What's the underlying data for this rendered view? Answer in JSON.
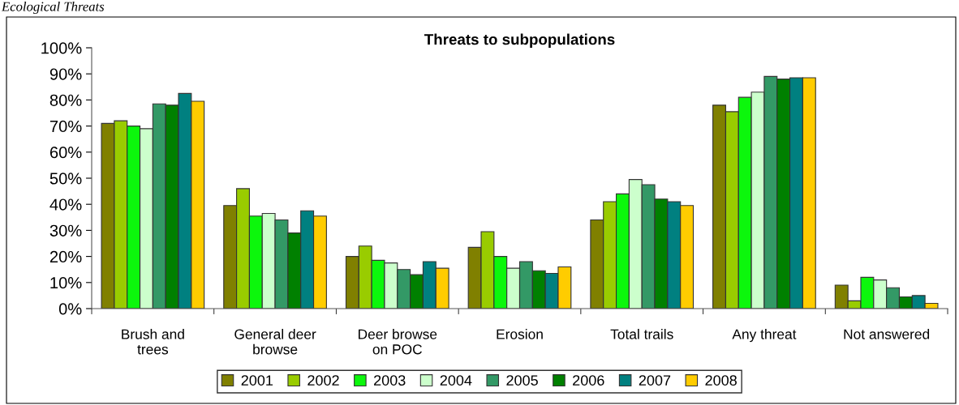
{
  "chart_data": {
    "type": "bar",
    "title": "Threats to subpopulations",
    "annotations": [
      "Ecological Threats"
    ],
    "categories": [
      "Brush and\ntrees",
      "General deer\nbrowse",
      "Deer browse\non POC",
      "Erosion",
      "Total trails",
      "Any threat",
      "Not answered"
    ],
    "series": [
      {
        "name": "2001",
        "color": "#808000",
        "values": [
          71,
          39.5,
          20,
          23.5,
          34,
          78,
          9
        ]
      },
      {
        "name": "2002",
        "color": "#99cc00",
        "values": [
          72,
          46,
          24,
          29.5,
          41,
          75.5,
          3
        ]
      },
      {
        "name": "2003",
        "color": "#0cf70c",
        "values": [
          70,
          35.5,
          18.5,
          20,
          44,
          81,
          12
        ]
      },
      {
        "name": "2004",
        "color": "#ccffcc",
        "values": [
          69,
          36.5,
          17.5,
          15.5,
          49.5,
          83,
          11
        ]
      },
      {
        "name": "2005",
        "color": "#339966",
        "values": [
          78.5,
          34,
          15,
          18,
          47.5,
          89,
          8
        ]
      },
      {
        "name": "2006",
        "color": "#008000",
        "values": [
          78,
          29,
          13,
          14.5,
          42,
          88,
          4.5
        ]
      },
      {
        "name": "2007",
        "color": "#008080",
        "values": [
          82.5,
          37.5,
          18,
          13.5,
          41,
          88.5,
          5
        ]
      },
      {
        "name": "2008",
        "color": "#ffcc00",
        "values": [
          79.5,
          35.5,
          15.5,
          16,
          39.5,
          88.5,
          2
        ]
      }
    ],
    "ylim": [
      0,
      100
    ],
    "yticks": [
      {
        "value": 0,
        "label": "0%"
      },
      {
        "value": 10,
        "label": "10%"
      },
      {
        "value": 20,
        "label": "20%"
      },
      {
        "value": 30,
        "label": "30%"
      },
      {
        "value": 40,
        "label": "40%"
      },
      {
        "value": 50,
        "label": "50%"
      },
      {
        "value": 60,
        "label": "60%"
      },
      {
        "value": 70,
        "label": "70%"
      },
      {
        "value": 80,
        "label": "80%"
      },
      {
        "value": 90,
        "label": "90%"
      },
      {
        "value": 100,
        "label": "100%"
      }
    ],
    "grid": false,
    "legend": "bottom"
  }
}
